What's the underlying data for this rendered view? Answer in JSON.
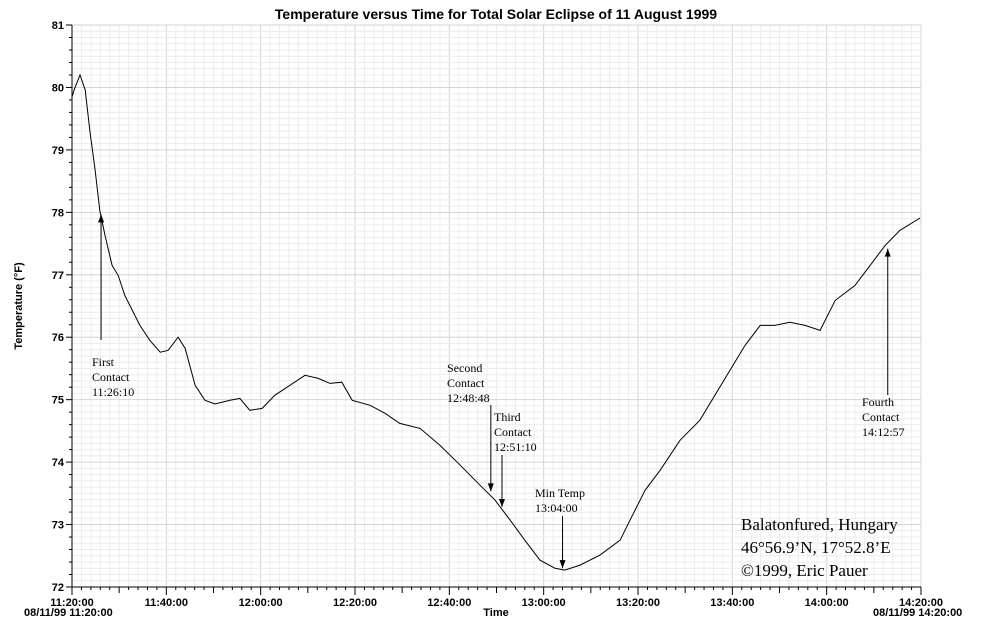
{
  "chart_data": {
    "type": "line",
    "title": "Temperature versus Time for Total Solar Eclipse of 11 August 1999",
    "xlabel": "Time",
    "ylabel": "Temperature (°F)",
    "xlim": [
      "11:20:00",
      "14:20:00"
    ],
    "ylim": [
      72,
      81
    ],
    "grid": true,
    "x_ticks": [
      "11:20:00",
      "11:40:00",
      "12:00:00",
      "12:20:00",
      "12:40:00",
      "13:00:00",
      "13:20:00",
      "13:40:00",
      "14:00:00",
      "14:20:00"
    ],
    "x_start_label": "08/11/99 11:20:00",
    "x_end_label": "08/11/99 14:20:00",
    "y_ticks": [
      "72",
      "73",
      "74",
      "75",
      "76",
      "77",
      "78",
      "79",
      "80",
      "81"
    ],
    "line_color": "#000000",
    "series": [
      {
        "points": [
          [
            "11:20:00",
            79.85
          ],
          [
            "11:20:36",
            79.99
          ],
          [
            "11:21:42",
            80.2
          ],
          [
            "11:22:48",
            79.96
          ],
          [
            "11:23:48",
            79.3
          ],
          [
            "11:24:54",
            78.68
          ],
          [
            "11:25:54",
            78.03
          ],
          [
            "11:27:00",
            77.63
          ],
          [
            "11:28:30",
            77.15
          ],
          [
            "11:29:48",
            76.99
          ],
          [
            "11:31:12",
            76.67
          ],
          [
            "11:34:24",
            76.19
          ],
          [
            "11:36:30",
            75.95
          ],
          [
            "11:38:42",
            75.76
          ],
          [
            "11:40:24",
            75.79
          ],
          [
            "11:42:30",
            76.0
          ],
          [
            "11:44:00",
            75.82
          ],
          [
            "11:46:06",
            75.23
          ],
          [
            "11:48:12",
            74.99
          ],
          [
            "11:50:18",
            74.93
          ],
          [
            "11:53:30",
            74.99
          ],
          [
            "11:55:36",
            75.02
          ],
          [
            "11:57:42",
            74.83
          ],
          [
            "12:00:18",
            74.86
          ],
          [
            "12:03:00",
            75.07
          ],
          [
            "12:06:12",
            75.23
          ],
          [
            "12:09:24",
            75.39
          ],
          [
            "12:12:12",
            75.34
          ],
          [
            "12:14:42",
            75.26
          ],
          [
            "12:17:12",
            75.28
          ],
          [
            "12:19:24",
            74.99
          ],
          [
            "12:23:12",
            74.91
          ],
          [
            "12:26:24",
            74.78
          ],
          [
            "12:29:30",
            74.62
          ],
          [
            "12:33:48",
            74.54
          ],
          [
            "12:38:00",
            74.27
          ],
          [
            "12:42:18",
            73.95
          ],
          [
            "12:46:30",
            73.63
          ],
          [
            "12:49:42",
            73.39
          ],
          [
            "12:52:54",
            73.07
          ],
          [
            "12:56:00",
            72.75
          ],
          [
            "12:59:12",
            72.43
          ],
          [
            "13:02:24",
            72.3
          ],
          [
            "13:04:30",
            72.27
          ],
          [
            "13:07:42",
            72.35
          ],
          [
            "13:11:54",
            72.51
          ],
          [
            "13:16:12",
            72.75
          ],
          [
            "13:18:18",
            73.07
          ],
          [
            "13:21:30",
            73.55
          ],
          [
            "13:24:42",
            73.87
          ],
          [
            "13:28:54",
            74.35
          ],
          [
            "13:33:06",
            74.67
          ],
          [
            "13:36:18",
            75.07
          ],
          [
            "13:39:30",
            75.47
          ],
          [
            "13:42:42",
            75.87
          ],
          [
            "13:45:54",
            76.19
          ],
          [
            "13:49:00",
            76.19
          ],
          [
            "13:52:12",
            76.24
          ],
          [
            "13:55:24",
            76.19
          ],
          [
            "13:58:36",
            76.11
          ],
          [
            "14:01:48",
            76.59
          ],
          [
            "14:06:00",
            76.83
          ],
          [
            "14:09:12",
            77.15
          ],
          [
            "14:12:24",
            77.47
          ],
          [
            "14:15:30",
            77.71
          ],
          [
            "14:19:48",
            77.91
          ]
        ]
      }
    ],
    "annotations": [
      {
        "lines": [
          "First",
          "Contact",
          "11:26:10"
        ],
        "time": "11:26:10",
        "temp": 78.0
      },
      {
        "lines": [
          "Second",
          "Contact",
          "12:48:48"
        ],
        "time": "12:48:48",
        "temp": 73.5
      },
      {
        "lines": [
          "Third",
          "Contact",
          "12:51:10"
        ],
        "time": "12:51:10",
        "temp": 73.25
      },
      {
        "lines": [
          "Min Temp",
          "13:04:00"
        ],
        "time": "13:04:00",
        "temp": 72.27
      },
      {
        "lines": [
          "Fourth",
          "Contact",
          "14:12:57"
        ],
        "time": "14:12:57",
        "temp": 77.45
      }
    ],
    "location_text": [
      "Balatonfured, Hungary",
      "46°56.9’N, 17°52.8’E",
      "©1999, Eric Pauer"
    ]
  }
}
